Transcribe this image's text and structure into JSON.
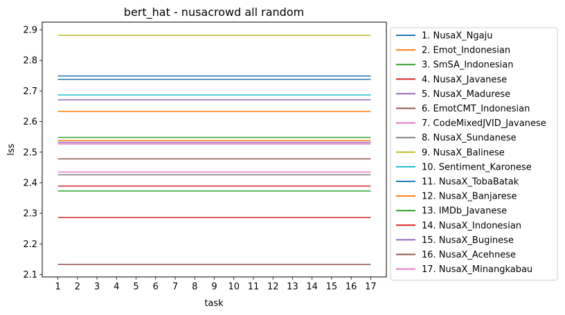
{
  "chart_data": {
    "type": "line",
    "title": "bert_hat - nusacrowd all random",
    "xlabel": "task",
    "ylabel": "lss",
    "x": [
      1,
      2,
      3,
      4,
      5,
      6,
      7,
      8,
      9,
      10,
      11,
      12,
      13,
      14,
      15,
      16,
      17
    ],
    "xlim": [
      0.2,
      17.8
    ],
    "ylim": [
      2.092,
      2.925
    ],
    "yticks": [
      2.1,
      2.2,
      2.3,
      2.4,
      2.5,
      2.6,
      2.7,
      2.8,
      2.9
    ],
    "grid": false,
    "legend_position": "outside-right",
    "series": [
      {
        "name": "1. NusaX_Ngaju",
        "color": "#1f77b4",
        "value": 2.749
      },
      {
        "name": "2. Emot_Indonesian",
        "color": "#ff7f0e",
        "value": 2.633
      },
      {
        "name": "3. SmSA_Indonesian",
        "color": "#2ca02c",
        "value": 2.548
      },
      {
        "name": "4. NusaX_Javanese",
        "color": "#d62728",
        "value": 2.389
      },
      {
        "name": "5. NusaX_Madurese",
        "color": "#9467bd",
        "value": 2.671
      },
      {
        "name": "6. EmotCMT_Indonesian",
        "color": "#8c564b",
        "value": 2.478
      },
      {
        "name": "7. CodeMixedJVID_Javanese",
        "color": "#e377c2",
        "value": 2.527
      },
      {
        "name": "8. NusaX_Sundanese",
        "color": "#7f7f7f",
        "value": 2.426
      },
      {
        "name": "9. NusaX_Balinese",
        "color": "#bcbd22",
        "value": 2.882
      },
      {
        "name": "10. Sentiment_Karonese",
        "color": "#17becf",
        "value": 2.687
      },
      {
        "name": "11. NusaX_TobaBatak",
        "color": "#1f77b4",
        "value": 2.738
      },
      {
        "name": "12. NusaX_Banjarese",
        "color": "#ff7f0e",
        "value": 2.538
      },
      {
        "name": "13. IMDb_Javanese",
        "color": "#2ca02c",
        "value": 2.373
      },
      {
        "name": "14. NusaX_Indonesian",
        "color": "#d62728",
        "value": 2.286
      },
      {
        "name": "15. NusaX_Buginese",
        "color": "#9467bd",
        "value": 2.532
      },
      {
        "name": "16. NusaX_Acehnese",
        "color": "#8c564b",
        "value": 2.133
      },
      {
        "name": "17. NusaX_Minangkabau",
        "color": "#e377c2",
        "value": 2.435
      }
    ]
  }
}
